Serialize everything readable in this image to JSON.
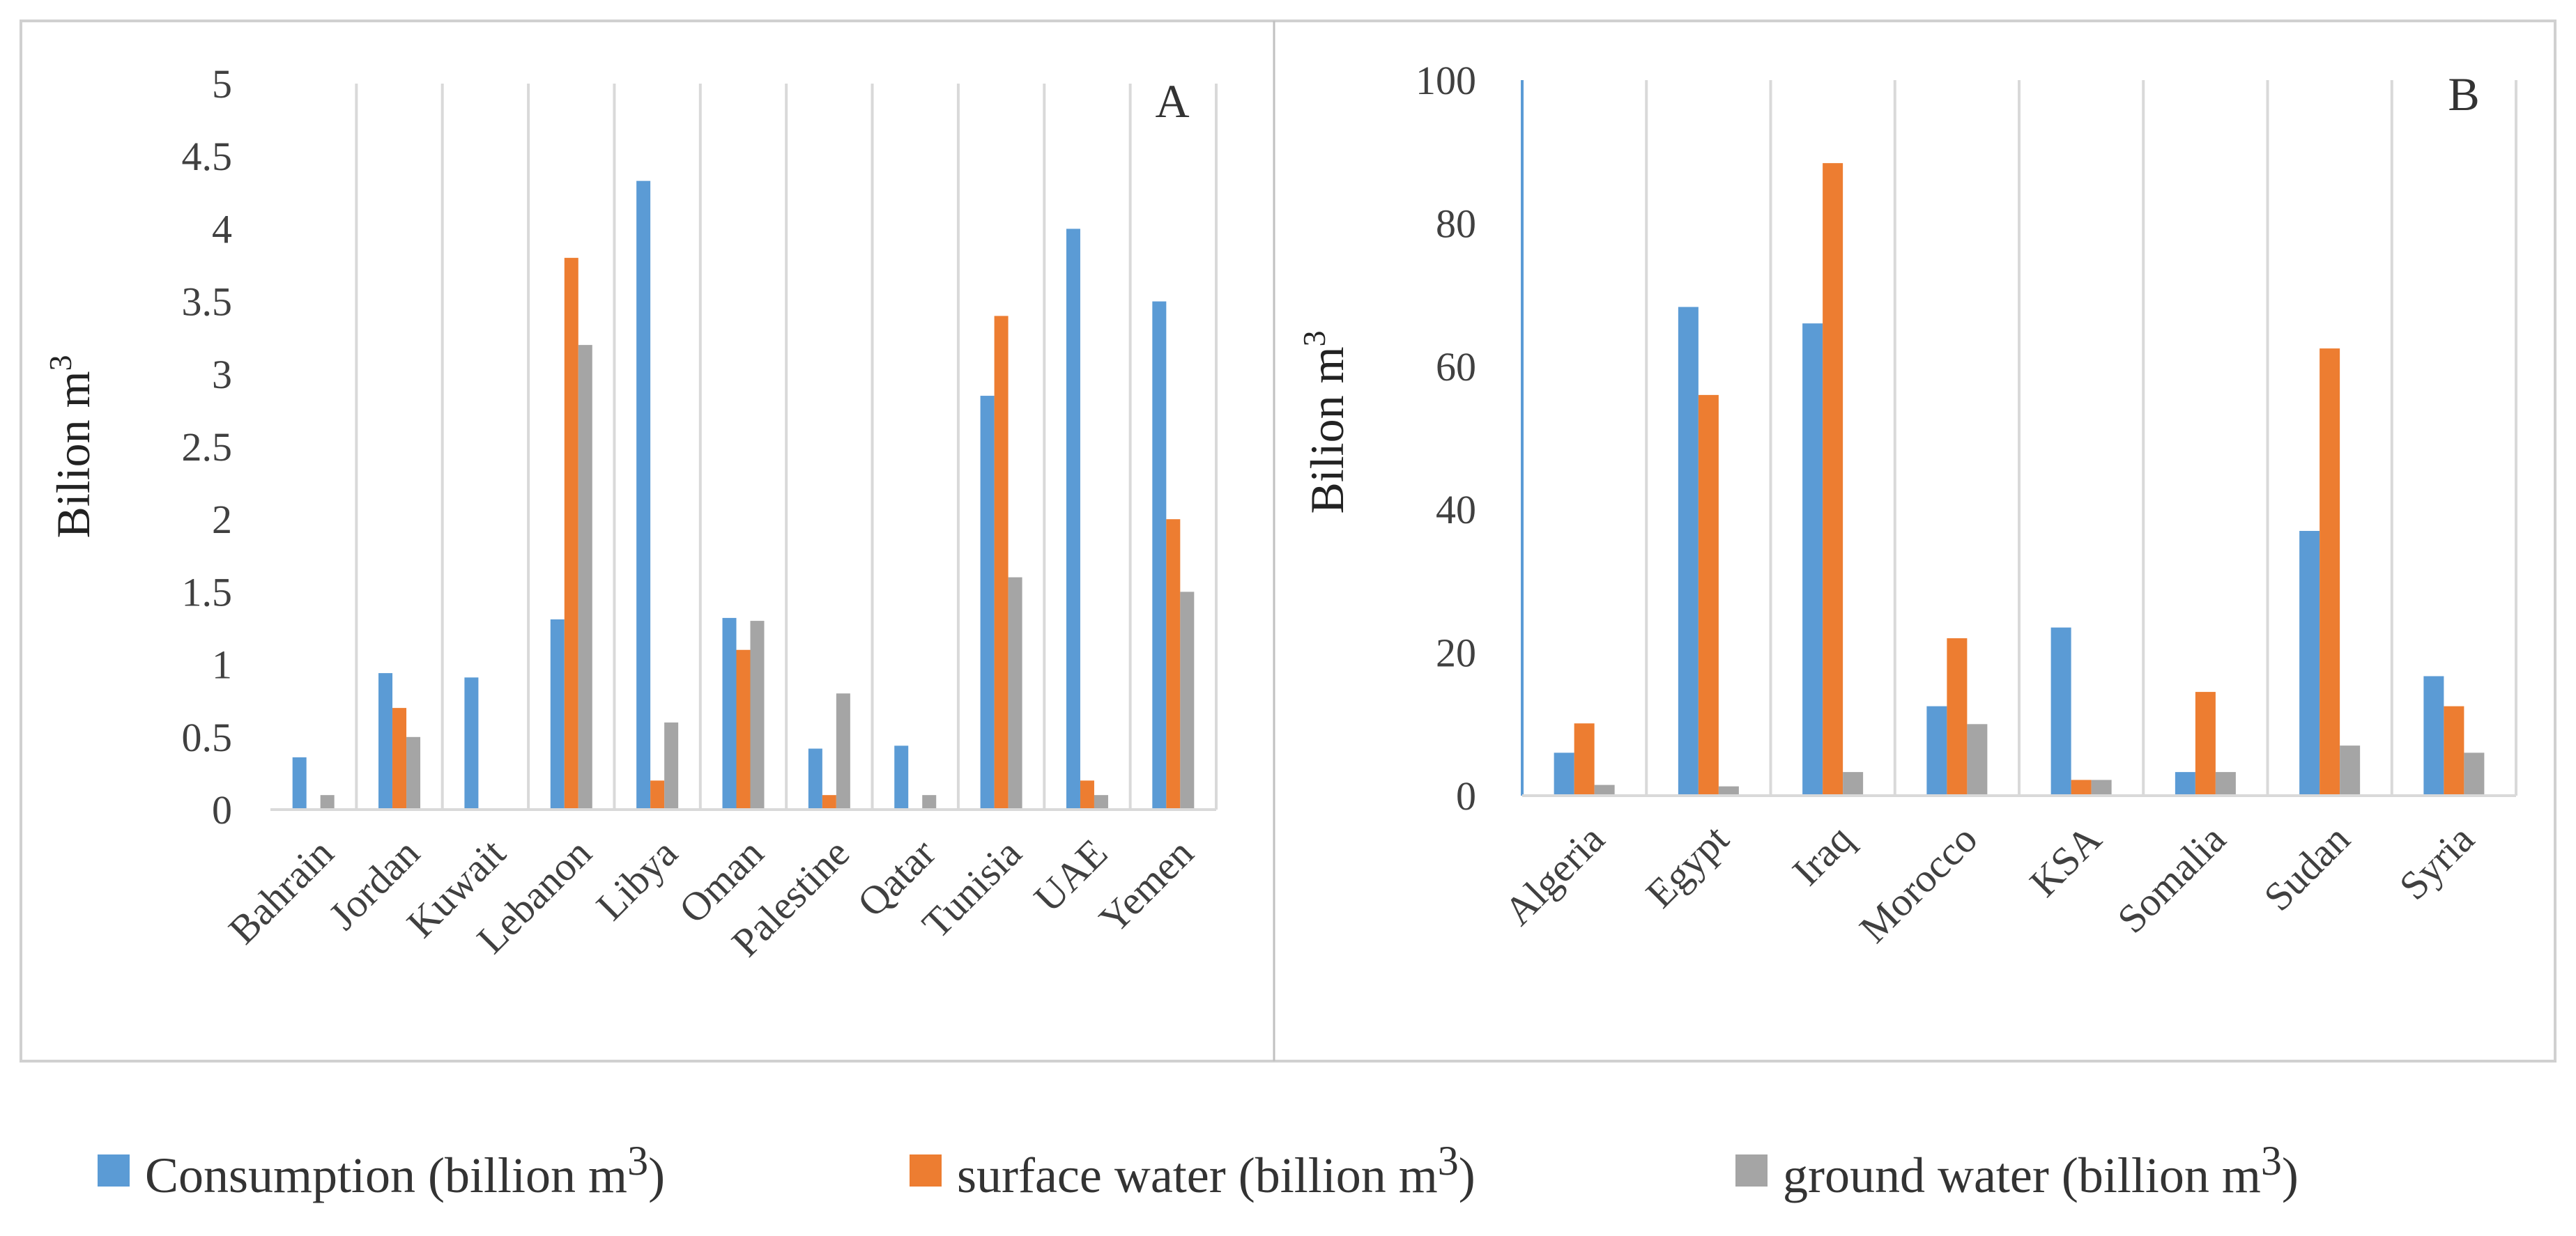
{
  "chart_data": [
    {
      "type": "bar",
      "panel_label": "A",
      "ylabel": "Bilion m",
      "ylabel_sup": "3",
      "ylim": [
        0,
        5
      ],
      "yticks": [
        0,
        0.5,
        1,
        1.5,
        2,
        2.5,
        3,
        3.5,
        4,
        4.5,
        5
      ],
      "ytick_labels": [
        "0",
        "0.5",
        "1",
        "1.5",
        "2",
        "2.5",
        "3",
        "3.5",
        "4",
        "4.5",
        "5"
      ],
      "grid": "vertical",
      "categories": [
        "Bahrain",
        "Jordan",
        "Kuwait",
        "Lebanon",
        "Libya",
        "Oman",
        "Palestine",
        "Qatar",
        "Tunisia",
        "UAE",
        "Yemen"
      ],
      "series": [
        {
          "name": "Consumption (billion m3)",
          "values": [
            0.36,
            0.94,
            0.91,
            1.31,
            4.33,
            1.32,
            0.42,
            0.44,
            2.85,
            4.0,
            3.5
          ]
        },
        {
          "name": "surface water (billion m3)",
          "values": [
            0,
            0.7,
            0,
            3.8,
            0.2,
            1.1,
            0.1,
            0,
            3.4,
            0.2,
            2.0
          ]
        },
        {
          "name": "ground water (billion m3)",
          "values": [
            0.1,
            0.5,
            0,
            3.2,
            0.6,
            1.3,
            0.8,
            0.1,
            1.6,
            0.1,
            1.5
          ]
        }
      ]
    },
    {
      "type": "bar",
      "panel_label": "B",
      "ylabel": "Bilion m",
      "ylabel_sup": "3",
      "ylim": [
        0,
        100
      ],
      "yticks": [
        0,
        20,
        40,
        60,
        80,
        100
      ],
      "ytick_labels": [
        "0",
        "20",
        "40",
        "60",
        "80",
        "100"
      ],
      "grid": "vertical",
      "categories": [
        "Algeria",
        "Egypt",
        "Iraq",
        "Morocco",
        "KSA",
        "Somalia",
        "Sudan",
        "Syria"
      ],
      "series": [
        {
          "name": "Consumption (billion m3)",
          "values": [
            6,
            68.3,
            66,
            12.5,
            23.5,
            3.3,
            37,
            16.7
          ]
        },
        {
          "name": "surface water (billion m3)",
          "values": [
            10.1,
            56,
            88.4,
            22,
            2.2,
            14.5,
            62.5,
            12.5
          ]
        },
        {
          "name": "ground water (billion m3)",
          "values": [
            1.5,
            1.3,
            3.3,
            10,
            2.2,
            3.3,
            7,
            6
          ]
        }
      ]
    }
  ],
  "legend": [
    {
      "label": "Consumption (billion m",
      "sup": "3",
      "tail": ")",
      "color": "#5b9bd5"
    },
    {
      "label": "surface water (billion m",
      "sup": "3",
      "tail": ")",
      "color": "#ed7d31"
    },
    {
      "label": "ground water (billion m",
      "sup": "3",
      "tail": ")",
      "color": "#a5a5a5"
    }
  ],
  "colors": {
    "consumption": "#5b9bd5",
    "surface": "#ed7d31",
    "ground": "#a5a5a5",
    "grid": "#d9d9d9",
    "frame": "#d0d0d0",
    "text": "#404040"
  }
}
